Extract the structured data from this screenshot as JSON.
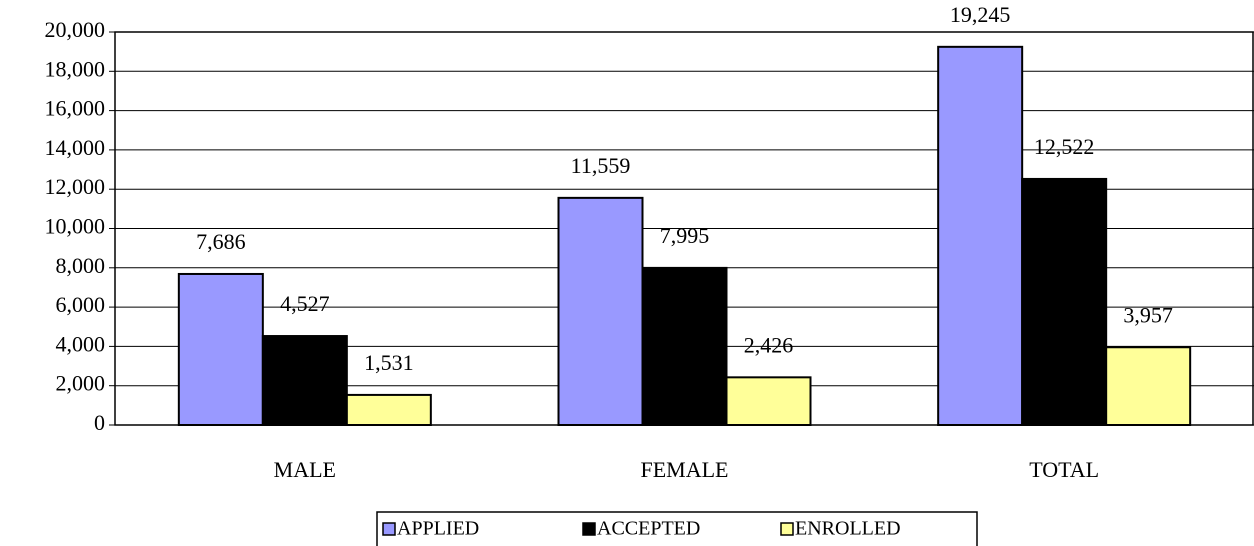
{
  "chart_data": {
    "type": "bar",
    "categories": [
      "MALE",
      "FEMALE",
      "TOTAL"
    ],
    "series": [
      {
        "name": "APPLIED",
        "color": "#9999ff",
        "values": [
          7686,
          11559,
          19245
        ],
        "value_labels": [
          "7,686",
          "11,559",
          "19,245"
        ]
      },
      {
        "name": "ACCEPTED",
        "color": "#000000",
        "values": [
          4527,
          7995,
          12522
        ],
        "value_labels": [
          "4,527",
          "7,995",
          "12,522"
        ]
      },
      {
        "name": "ENROLLED",
        "color": "#ffff99",
        "values": [
          1531,
          2426,
          3957
        ],
        "value_labels": [
          "1,531",
          "2,426",
          "3,957"
        ]
      }
    ],
    "ylim": [
      0,
      20000
    ],
    "yticks": [
      0,
      {
        "value": 2000,
        "label": "2,000"
      },
      {
        "value": 4000,
        "label": "4,000"
      },
      {
        "value": 6000,
        "label": "6,000"
      },
      {
        "value": 8000,
        "label": "8,000"
      },
      {
        "value": 10000,
        "label": "10,000"
      },
      {
        "value": 12000,
        "label": "12,000"
      },
      {
        "value": 14000,
        "label": "14,000"
      },
      {
        "value": 16000,
        "label": "16,000"
      },
      {
        "value": 18000,
        "label": "18,000"
      },
      {
        "value": 20000,
        "label": "20,000"
      }
    ],
    "grid": true,
    "legend": "bottom"
  }
}
